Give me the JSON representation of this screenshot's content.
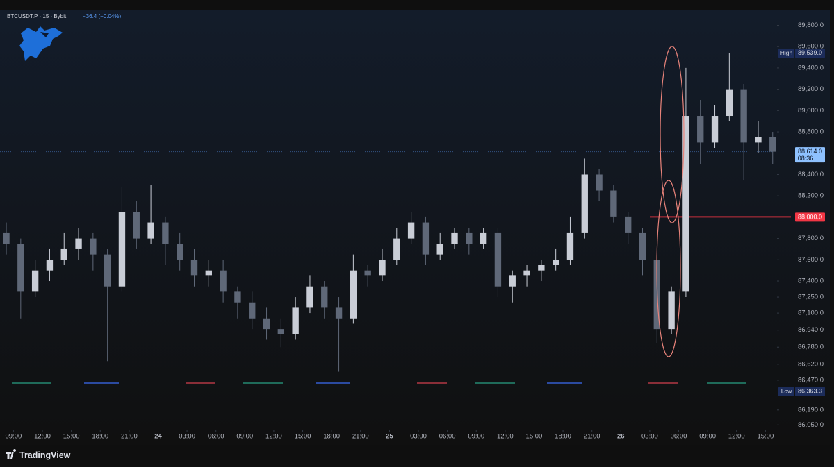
{
  "header": {
    "symbol": "BTCUSDT.P · 15 · Bybit",
    "change": "−36.4 (−0.04%)"
  },
  "footer": {
    "brand": "TradingView"
  },
  "chart_data": {
    "type": "candlestick",
    "up_color": "#c9cdd6",
    "down_color": "#5f6878",
    "xlim": [
      -1.4,
      79.2
    ],
    "xticks": [
      {
        "value": 0,
        "label": "09:00"
      },
      {
        "value": 3,
        "label": "12:00"
      },
      {
        "value": 6,
        "label": "15:00"
      },
      {
        "value": 9,
        "label": "18:00"
      },
      {
        "value": 12,
        "label": "21:00"
      },
      {
        "value": 15,
        "label": "24"
      },
      {
        "value": 18,
        "label": "03:00"
      },
      {
        "value": 21,
        "label": "06:00"
      },
      {
        "value": 24,
        "label": "09:00"
      },
      {
        "value": 27,
        "label": "12:00"
      },
      {
        "value": 30,
        "label": "15:00"
      },
      {
        "value": 33,
        "label": "18:00"
      },
      {
        "value": 36,
        "label": "21:00"
      },
      {
        "value": 39,
        "label": "25"
      },
      {
        "value": 42,
        "label": "03:00"
      },
      {
        "value": 45,
        "label": "06:00"
      },
      {
        "value": 48,
        "label": "09:00"
      },
      {
        "value": 51,
        "label": "12:00"
      },
      {
        "value": 54,
        "label": "15:00"
      },
      {
        "value": 57,
        "label": "18:00"
      },
      {
        "value": 60,
        "label": "21:00"
      },
      {
        "value": 63,
        "label": "26"
      },
      {
        "value": 66,
        "label": "03:00"
      },
      {
        "value": 69,
        "label": "06:00"
      },
      {
        "value": 72,
        "label": "09:00"
      },
      {
        "value": 75,
        "label": "12:00"
      },
      {
        "value": 78,
        "label": "15:00"
      }
    ],
    "ylim": [
      86000,
      89940
    ],
    "yticks": [
      {
        "value": 89800,
        "label": "89,800.0"
      },
      {
        "value": 89600,
        "label": "89,600.0"
      },
      {
        "value": 89400,
        "label": "89,400.0"
      },
      {
        "value": 89200,
        "label": "89,200.0"
      },
      {
        "value": 89000,
        "label": "89,000.0"
      },
      {
        "value": 88800,
        "label": "88,800.0"
      },
      {
        "value": 88400,
        "label": "88,400.0"
      },
      {
        "value": 88200,
        "label": "88,200.0"
      },
      {
        "value": 87800,
        "label": "87,800.0"
      },
      {
        "value": 87600,
        "label": "87,600.0"
      },
      {
        "value": 87400,
        "label": "87,400.0"
      },
      {
        "value": 87250,
        "label": "87,250.0"
      },
      {
        "value": 87100,
        "label": "87,100.0"
      },
      {
        "value": 86940,
        "label": "86,940.0"
      },
      {
        "value": 86780,
        "label": "86,780.0"
      },
      {
        "value": 86620,
        "label": "86,620.0"
      },
      {
        "value": 86470,
        "label": "86,470.0"
      },
      {
        "value": 86190,
        "label": "86,190.0"
      },
      {
        "value": 86050,
        "label": "86,050.0"
      }
    ],
    "x": [
      -0.75,
      0.75,
      2.25,
      3.75,
      5.25,
      6.75,
      8.25,
      9.75,
      11.25,
      12.75,
      14.25,
      15.75,
      17.25,
      18.75,
      20.25,
      21.75,
      23.25,
      24.75,
      26.25,
      27.75,
      29.25,
      30.75,
      32.25,
      33.75,
      35.25,
      36.75,
      38.25,
      39.75,
      41.25,
      42.75,
      44.25,
      45.75,
      47.25,
      48.75,
      50.25,
      51.75,
      53.25,
      54.75,
      56.25,
      57.75,
      59.25,
      60.75,
      62.25,
      63.75,
      65.25,
      66.75,
      68.25,
      69.75,
      71.25,
      72.75,
      74.25,
      75.75,
      77.25,
      78.75
    ],
    "open": [
      87850,
      87750,
      87300,
      87500,
      87600,
      87700,
      87800,
      87650,
      87350,
      88050,
      87800,
      87950,
      87750,
      87600,
      87450,
      87500,
      87300,
      87200,
      87050,
      86950,
      86900,
      87150,
      87350,
      87150,
      87050,
      87500,
      87450,
      87600,
      87800,
      87950,
      87650,
      87750,
      87850,
      87750,
      87850,
      87350,
      87450,
      87500,
      87550,
      87600,
      87850,
      88400,
      88250,
      88000,
      87850,
      87600,
      86950,
      87300,
      88950,
      88700,
      88950,
      89200,
      88700,
      88750
    ],
    "high": [
      87950,
      87800,
      87600,
      87700,
      87850,
      87900,
      87850,
      87700,
      88280,
      88150,
      88300,
      88000,
      87850,
      87700,
      87600,
      87600,
      87350,
      87300,
      87150,
      87050,
      87250,
      87450,
      87400,
      87250,
      87650,
      87550,
      87700,
      87900,
      88050,
      88000,
      87850,
      87900,
      87900,
      87900,
      87900,
      87500,
      87550,
      87600,
      87700,
      88000,
      88550,
      88450,
      88300,
      88050,
      87900,
      87650,
      87350,
      89400,
      89100,
      89050,
      89539,
      89250,
      88900,
      88800
    ],
    "low": [
      87650,
      87050,
      87250,
      87400,
      87550,
      87600,
      87500,
      86650,
      87300,
      87700,
      87750,
      87550,
      87500,
      87350,
      87350,
      87200,
      87050,
      86950,
      86850,
      86780,
      86850,
      87100,
      87050,
      86550,
      87000,
      87350,
      87400,
      87550,
      87750,
      87550,
      87600,
      87700,
      87650,
      87700,
      87250,
      87200,
      87350,
      87400,
      87500,
      87550,
      87800,
      88150,
      87950,
      87750,
      87450,
      86820,
      86900,
      87250,
      88500,
      88650,
      88900,
      88350,
      88600,
      88500
    ],
    "close": [
      87750,
      87300,
      87500,
      87600,
      87700,
      87800,
      87650,
      87350,
      88050,
      87800,
      87950,
      87750,
      87600,
      87450,
      87500,
      87300,
      87200,
      87050,
      86950,
      86900,
      87150,
      87350,
      87150,
      87050,
      87500,
      87450,
      87600,
      87800,
      87950,
      87650,
      87750,
      87850,
      87750,
      87850,
      87350,
      87450,
      87500,
      87550,
      87600,
      87850,
      88400,
      88250,
      88000,
      87850,
      87600,
      86950,
      87300,
      88950,
      88700,
      88950,
      89200,
      88700,
      88750,
      88614
    ],
    "high_mark": {
      "name": "High",
      "value": 89539,
      "label": "89,539.0"
    },
    "low_mark": {
      "name": "Low",
      "value": 86363.3,
      "label": "86,363.3"
    },
    "last_price": {
      "value": 88614,
      "label": "88,614.0",
      "countdown": "08:36"
    },
    "level": {
      "value": 88000,
      "label": "88,000.0",
      "color": "#f23645"
    }
  }
}
